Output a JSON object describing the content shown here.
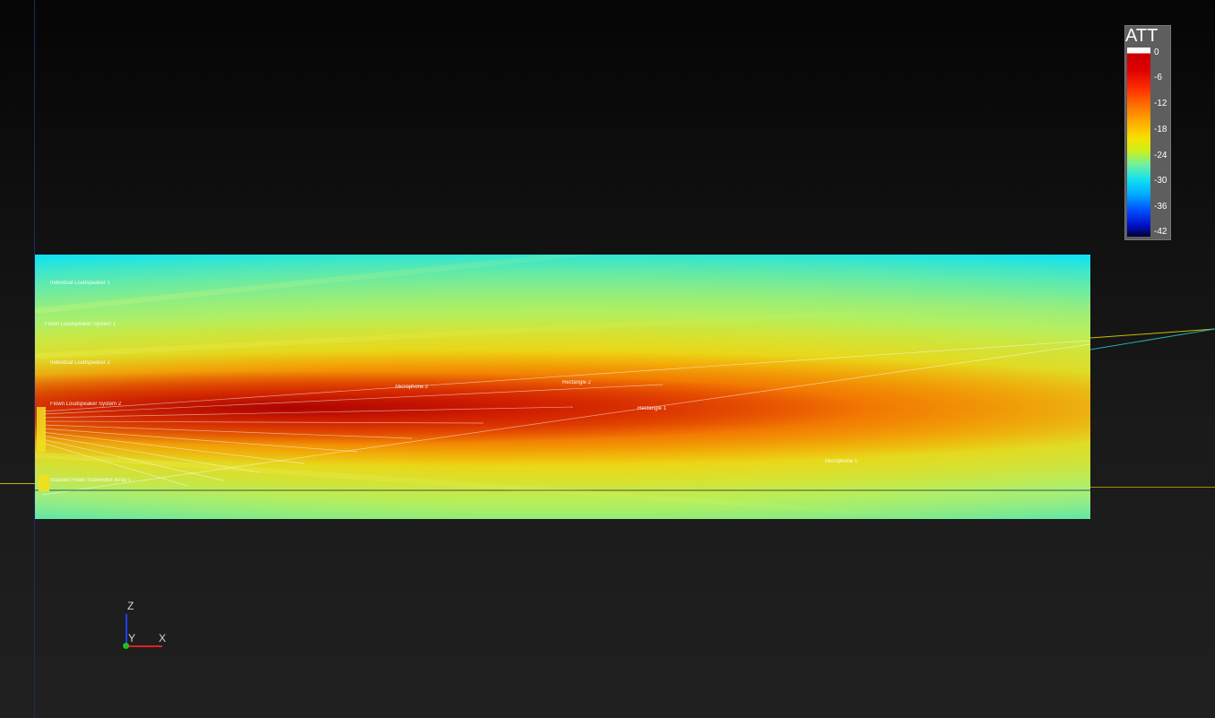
{
  "viewport": {
    "background_color": "#151515",
    "heatmap_labels": [
      "Individual Loudspeaker 1",
      "Flown Loudspeaker System 1",
      "Individual Loudspeaker 2",
      "Flown Loudspeaker System 2",
      "Microphone 2",
      "Rectangle 2",
      "Rectangle 1",
      "Microphone 1",
      "Stacked Flown Subwoofer Array 1"
    ]
  },
  "legend": {
    "title": "ATT",
    "ticks": [
      "0",
      "-6",
      "-12",
      "-18",
      "-24",
      "-30",
      "-36",
      "-42"
    ],
    "range": [
      -42,
      0
    ],
    "colors": {
      "top": "#ffffff",
      "high": "#c80000",
      "mid": "#f8e000",
      "low": "#10e0f0",
      "bottom": "#000030"
    }
  },
  "gizmo": {
    "z_label": "Z",
    "y_label": "Y",
    "x_label": "X",
    "colors": {
      "z": "#2040ff",
      "x": "#e02020",
      "y": "#20c020"
    }
  }
}
